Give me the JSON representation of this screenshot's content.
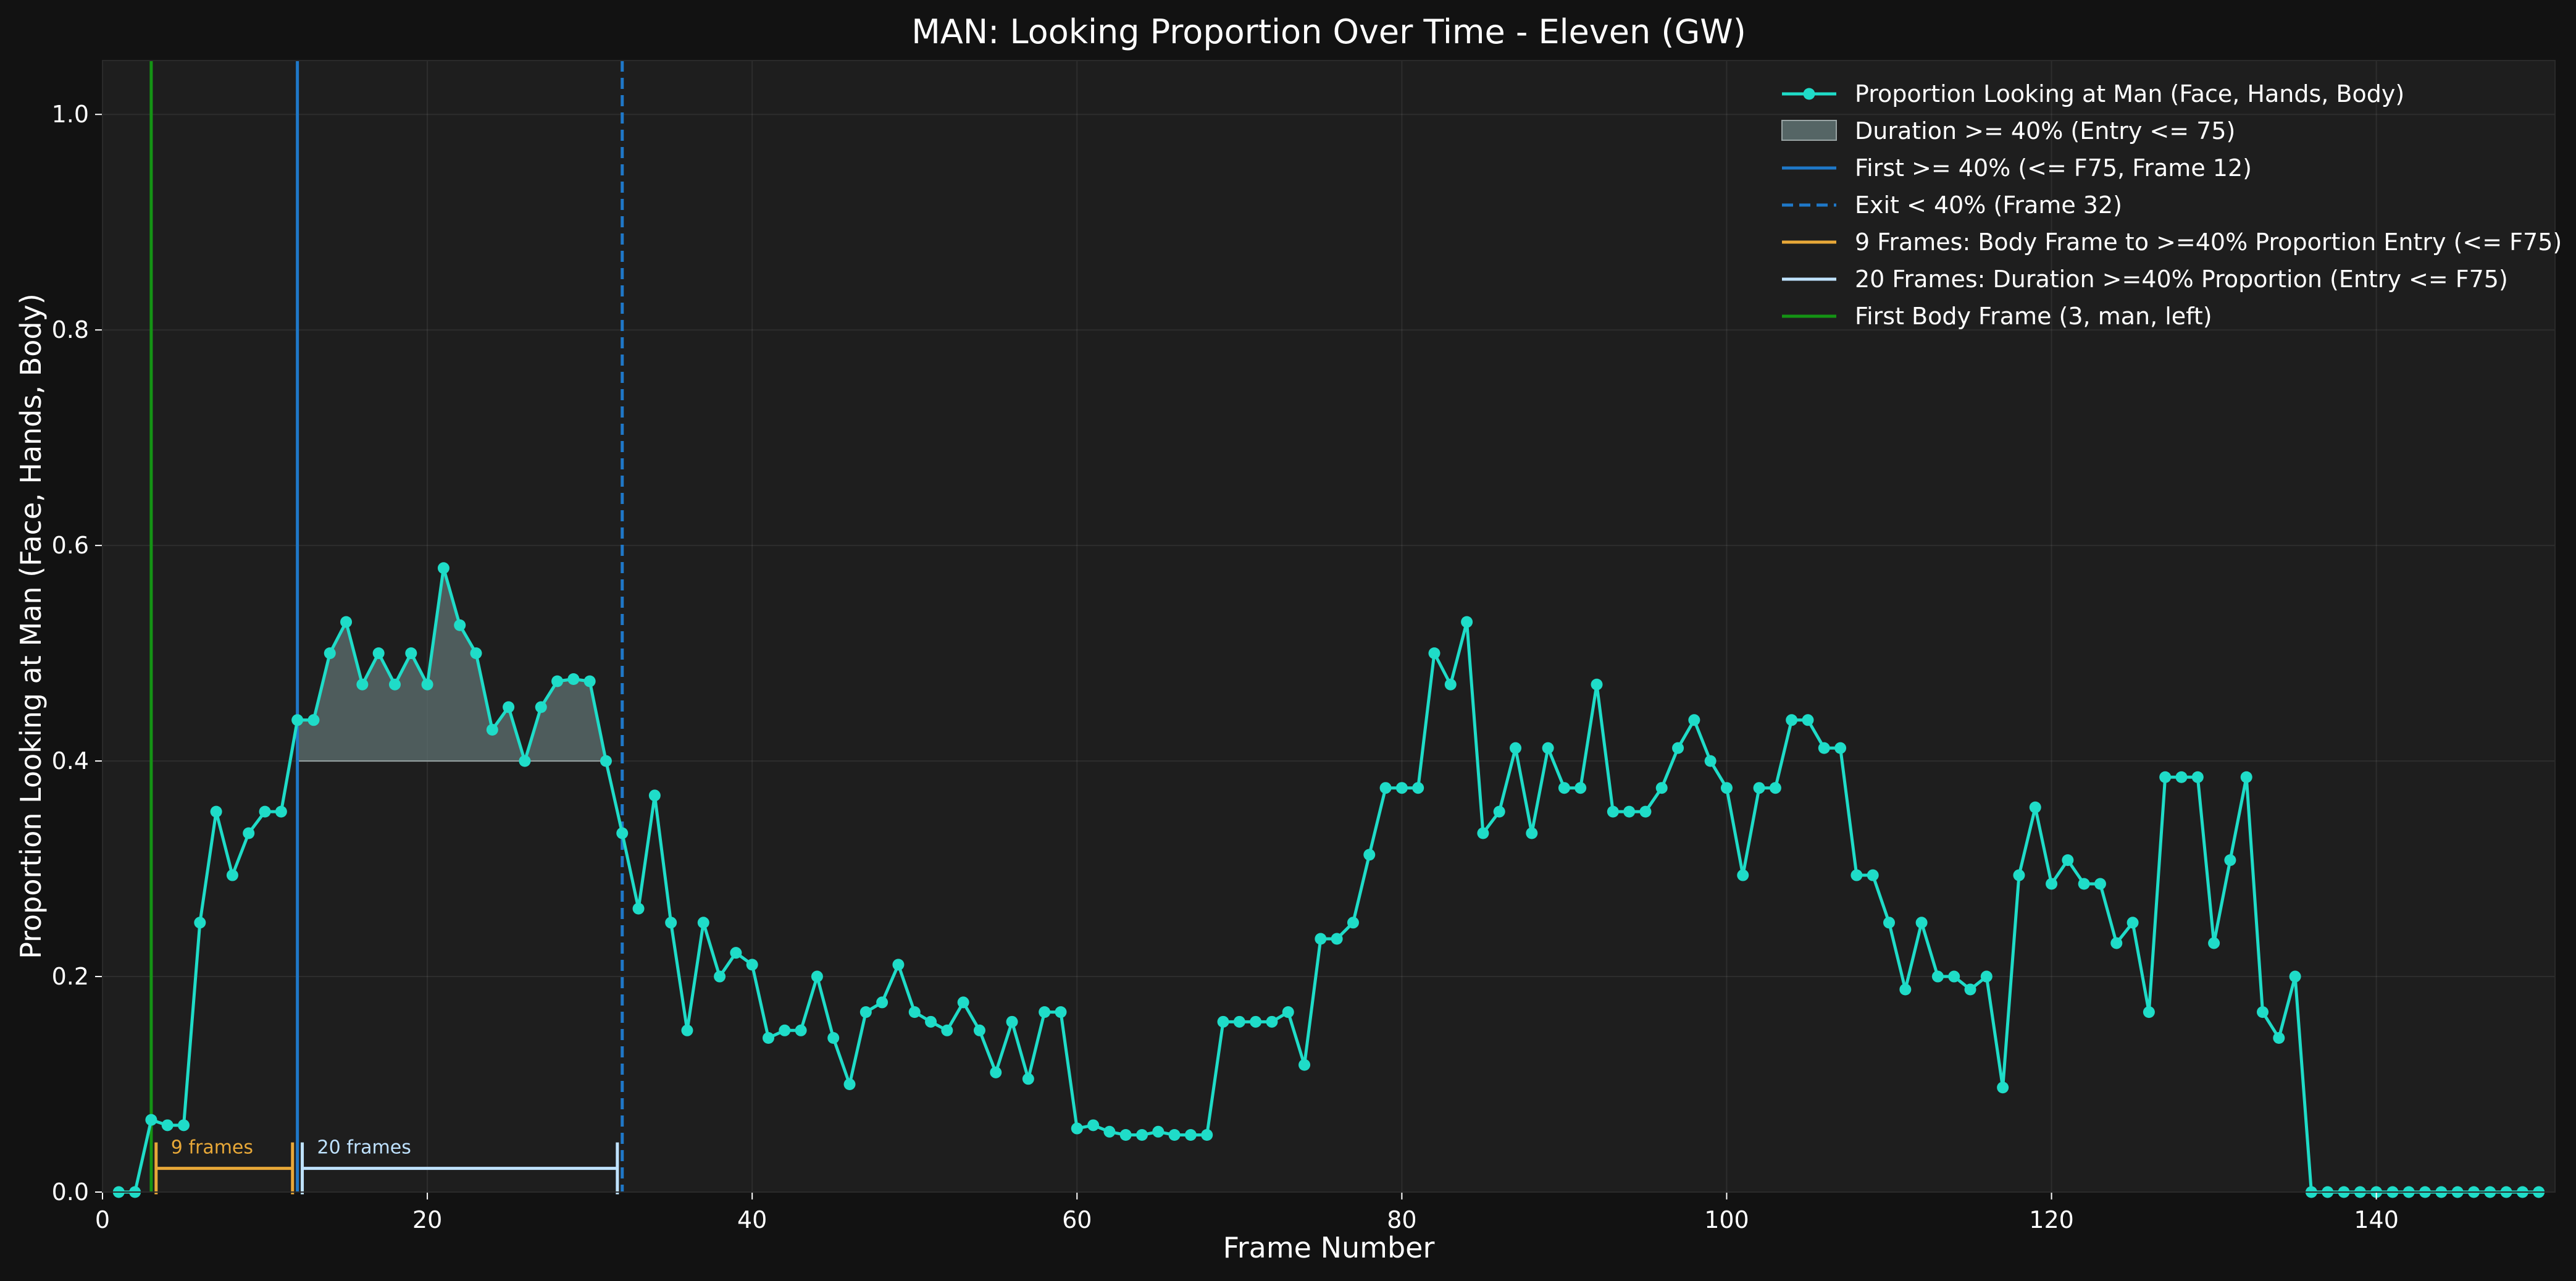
{
  "chart_data": {
    "type": "line",
    "title": "MAN: Looking Proportion Over Time - Eleven (GW)",
    "xlabel": "Frame Number",
    "ylabel": "Proportion Looking at Man (Face, Hands, Body)",
    "xlim": [
      0,
      151
    ],
    "ylim": [
      0,
      1.05
    ],
    "xticks": [
      0,
      20,
      40,
      60,
      80,
      100,
      120,
      140
    ],
    "yticks": [
      0.0,
      0.2,
      0.4,
      0.6,
      0.8,
      1.0
    ],
    "xtick_labels": [
      "0",
      "20",
      "40",
      "60",
      "80",
      "100",
      "120",
      "140"
    ],
    "ytick_labels": [
      "0.0",
      "0.2",
      "0.4",
      "0.6",
      "0.8",
      "1.0"
    ],
    "grid": true,
    "legend_position": "top-right",
    "colors": {
      "series": "#1fdcc8",
      "fill": "#5f7272",
      "first_line": "#1f78c8",
      "exit_line": "#1f78c8",
      "body_bracket": "#e8a838",
      "duration_bracket": "#bfe2ff",
      "body_line": "#149414",
      "background": "#1e1e1e",
      "page": "#121212"
    },
    "series": [
      {
        "name": "Proportion Looking at Man (Face, Hands, Body)",
        "x": [
          1,
          2,
          3,
          4,
          5,
          6,
          7,
          8,
          9,
          10,
          11,
          12,
          13,
          14,
          15,
          16,
          17,
          18,
          19,
          20,
          21,
          22,
          23,
          24,
          25,
          26,
          27,
          28,
          29,
          30,
          31,
          32,
          33,
          34,
          35,
          36,
          37,
          38,
          39,
          40,
          41,
          42,
          43,
          44,
          45,
          46,
          47,
          48,
          49,
          50,
          51,
          52,
          53,
          54,
          55,
          56,
          57,
          58,
          59,
          60,
          61,
          62,
          63,
          64,
          65,
          66,
          67,
          68,
          69,
          70,
          71,
          72,
          73,
          74,
          75,
          76,
          77,
          78,
          79,
          80,
          81,
          82,
          83,
          84,
          85,
          86,
          87,
          88,
          89,
          90,
          91,
          92,
          93,
          94,
          95,
          96,
          97,
          98,
          99,
          100,
          101,
          102,
          103,
          104,
          105,
          106,
          107,
          108,
          109,
          110,
          111,
          112,
          113,
          114,
          115,
          116,
          117,
          118,
          119,
          120,
          121,
          122,
          123,
          124,
          125,
          126,
          127,
          128,
          129,
          130,
          131,
          132,
          133,
          134,
          135,
          136,
          137,
          138,
          139,
          140,
          141,
          142,
          143,
          144,
          145,
          146,
          147,
          148,
          149,
          150
        ],
        "values": [
          0.0,
          0.0,
          0.067,
          0.062,
          0.062,
          0.25,
          0.353,
          0.294,
          0.333,
          0.353,
          0.353,
          0.438,
          0.438,
          0.5,
          0.529,
          0.471,
          0.5,
          0.471,
          0.5,
          0.471,
          0.579,
          0.526,
          0.5,
          0.429,
          0.45,
          0.4,
          0.45,
          0.474,
          0.476,
          0.474,
          0.4,
          0.333,
          0.263,
          0.368,
          0.25,
          0.15,
          0.25,
          0.2,
          0.222,
          0.211,
          0.143,
          0.15,
          0.15,
          0.2,
          0.143,
          0.1,
          0.167,
          0.176,
          0.211,
          0.167,
          0.158,
          0.15,
          0.176,
          0.15,
          0.111,
          0.158,
          0.105,
          0.167,
          0.167,
          0.059,
          0.062,
          0.056,
          0.053,
          0.053,
          0.056,
          0.053,
          0.053,
          0.053,
          0.158,
          0.158,
          0.158,
          0.158,
          0.167,
          0.118,
          0.235,
          0.235,
          0.25,
          0.313,
          0.375,
          0.375,
          0.375,
          0.5,
          0.471,
          0.529,
          0.333,
          0.353,
          0.412,
          0.333,
          0.412,
          0.375,
          0.375,
          0.471,
          0.353,
          0.353,
          0.353,
          0.375,
          0.412,
          0.438,
          0.4,
          0.375,
          0.294,
          0.375,
          0.375,
          0.438,
          0.438,
          0.412,
          0.412,
          0.294,
          0.294,
          0.25,
          0.188,
          0.25,
          0.2,
          0.2,
          0.188,
          0.2,
          0.097,
          0.294,
          0.357,
          0.286,
          0.308,
          0.286,
          0.286,
          0.231,
          0.25,
          0.167,
          0.385,
          0.385,
          0.385,
          0.231,
          0.308,
          0.385,
          0.167,
          0.143,
          0.2,
          0.0,
          0.0,
          0.0,
          0.0,
          0.0,
          0.0,
          0.0,
          0.0,
          0.0,
          0.0,
          0.0,
          0.0,
          0.0,
          0.0,
          0.0
        ]
      }
    ],
    "fill_region": {
      "from_x": 12,
      "to_x": 31,
      "threshold": 0.4
    },
    "vlines": [
      {
        "key": "first",
        "x": 12,
        "style": "solid"
      },
      {
        "key": "exit",
        "x": 32,
        "style": "dashed"
      },
      {
        "key": "body",
        "x": 3,
        "style": "solid"
      }
    ],
    "brackets": [
      {
        "key": "body_bracket",
        "from_x": 3.3,
        "to_x": 11.7,
        "y": 0.022,
        "label": "9 frames"
      },
      {
        "key": "duration_bracket",
        "from_x": 12.3,
        "to_x": 31.7,
        "y": 0.022,
        "label": "20 frames"
      }
    ],
    "legend": [
      {
        "kind": "line-marker",
        "color_key": "series",
        "label": "Proportion Looking at Man (Face, Hands, Body)"
      },
      {
        "kind": "patch",
        "color_key": "fill",
        "label": "Duration >= 40% (Entry <= 75)"
      },
      {
        "kind": "line",
        "color_key": "first_line",
        "label": "First >= 40% (<= F75, Frame 12)"
      },
      {
        "kind": "dashed",
        "color_key": "exit_line",
        "label": "Exit < 40% (Frame 32)"
      },
      {
        "kind": "line",
        "color_key": "body_bracket",
        "label": "9 Frames: Body Frame to >=40% Proportion Entry (<= F75)"
      },
      {
        "kind": "line",
        "color_key": "duration_bracket",
        "label": "20 Frames: Duration >=40% Proportion (Entry <= F75)"
      },
      {
        "kind": "line",
        "color_key": "body_line",
        "label": "First Body Frame (3, man, left)"
      }
    ]
  }
}
